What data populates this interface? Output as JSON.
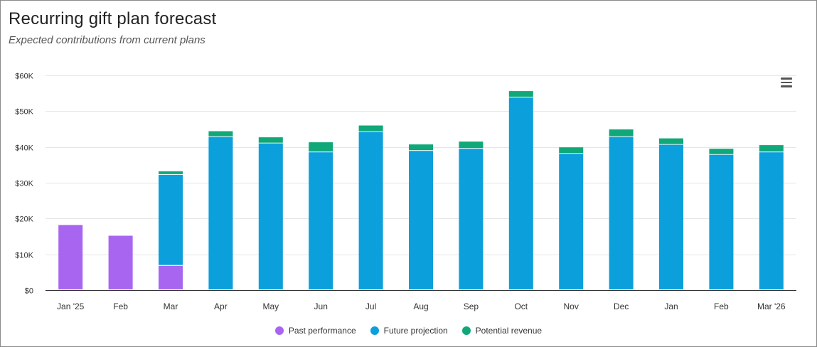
{
  "header": {
    "title": "Recurring gift plan forecast",
    "subtitle": "Expected contributions from current plans"
  },
  "menu": {
    "icon": "hamburger-menu-icon"
  },
  "colors": {
    "past": "#a866f0",
    "future": "#0b9fdc",
    "potential": "#10a878",
    "grid": "#e6e6e6",
    "axis": "#333333",
    "tick_text": "#333333"
  },
  "chart_data": {
    "type": "bar",
    "stacked": true,
    "title": "Recurring gift plan forecast",
    "subtitle": "Expected contributions from current plans",
    "categories": [
      "Jan '25",
      "Feb",
      "Mar",
      "Apr",
      "May",
      "Jun",
      "Jul",
      "Aug",
      "Sep",
      "Oct",
      "Nov",
      "Dec",
      "Jan",
      "Feb",
      "Mar '26"
    ],
    "series": [
      {
        "name": "Past performance",
        "key": "past",
        "values": [
          18200,
          15200,
          6800,
          0,
          0,
          0,
          0,
          0,
          0,
          0,
          0,
          0,
          0,
          0,
          0
        ]
      },
      {
        "name": "Future projection",
        "key": "future",
        "values": [
          0,
          0,
          25400,
          42800,
          41000,
          38500,
          44200,
          38900,
          39500,
          53800,
          38100,
          42800,
          40600,
          37800,
          38500
        ]
      },
      {
        "name": "Potential revenue",
        "key": "potential",
        "values": [
          0,
          0,
          1000,
          1600,
          1700,
          2800,
          1800,
          1800,
          2000,
          1800,
          1800,
          2100,
          1800,
          1700,
          2000
        ]
      }
    ],
    "xlabel": "",
    "ylabel": "",
    "ylim": [
      0,
      60000
    ],
    "yticks": [
      "$0",
      "$10K",
      "$20K",
      "$30K",
      "$40K",
      "$50K",
      "$60K"
    ],
    "ytick_values": [
      0,
      10000,
      20000,
      30000,
      40000,
      50000,
      60000
    ],
    "grid": true,
    "legend_position": "bottom-center"
  }
}
